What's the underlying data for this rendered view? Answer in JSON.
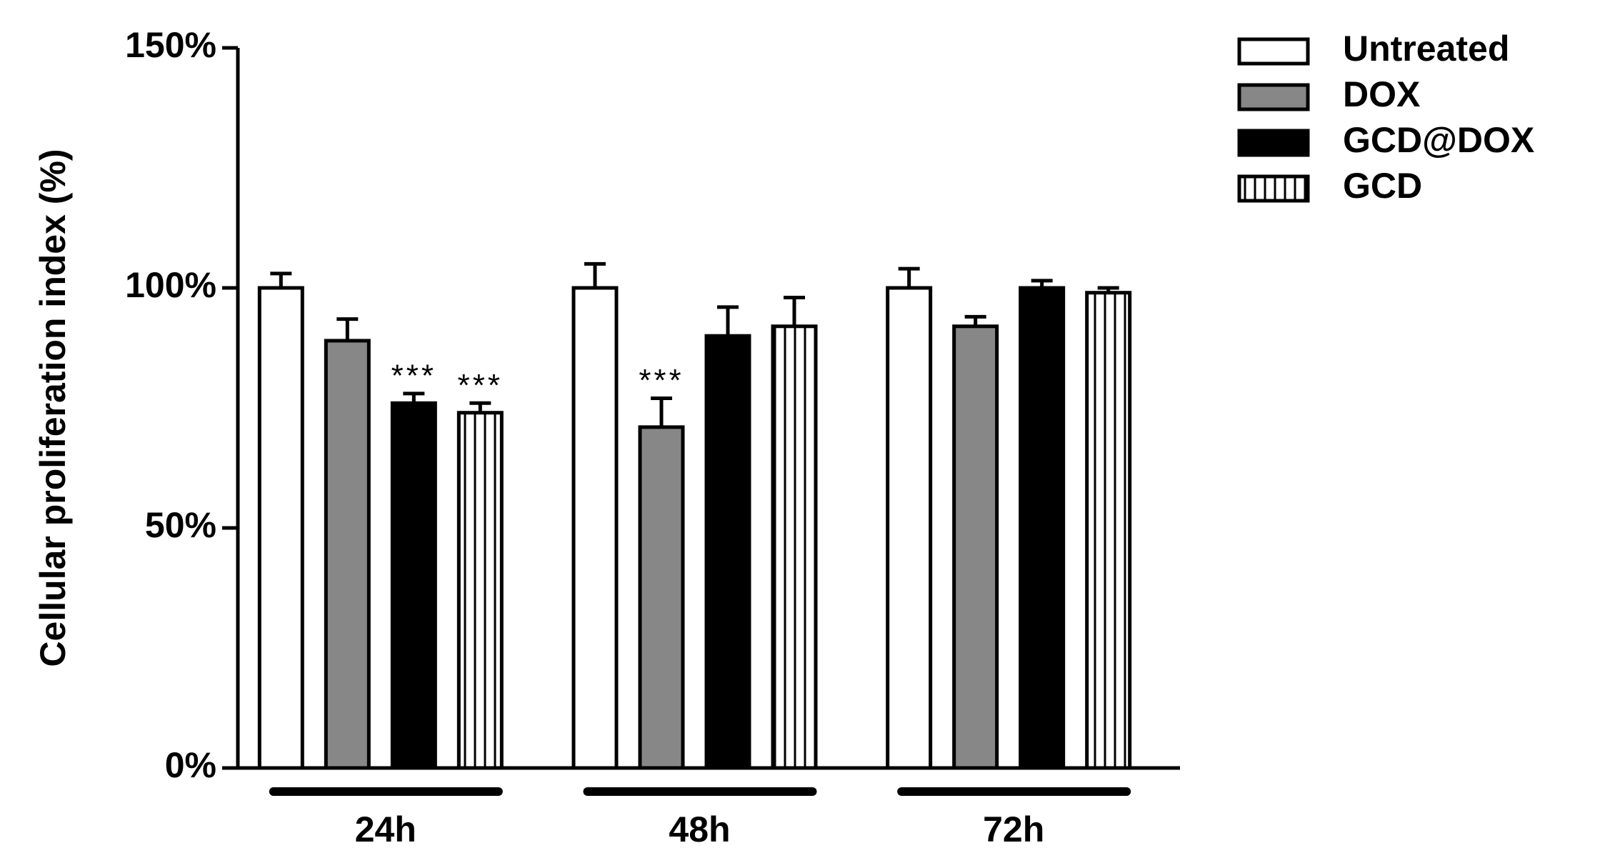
{
  "chart_data": {
    "type": "bar",
    "y_label": "Cellular proliferation index (%)",
    "categories": [
      "24h",
      "48h",
      "72h"
    ],
    "series": [
      {
        "name": "Untreated",
        "color": "#ffffff",
        "values": [
          100,
          100,
          100
        ],
        "errors": [
          3,
          5,
          4
        ]
      },
      {
        "name": "DOX",
        "color": "#878787",
        "values": [
          89,
          71,
          92
        ],
        "errors": [
          4.5,
          6,
          2
        ]
      },
      {
        "name": "GCD@DOX",
        "color": "#000000",
        "values": [
          76,
          90,
          100
        ],
        "errors": [
          2,
          6,
          1.5
        ]
      },
      {
        "name": "GCD",
        "color": "#ffffff",
        "pattern": "vertical-stripes",
        "values": [
          74,
          92,
          99
        ],
        "errors": [
          2,
          6,
          1
        ]
      }
    ],
    "ylim": [
      0,
      150
    ],
    "yticks": [
      {
        "value": 0,
        "label": "0%"
      },
      {
        "value": 50,
        "label": "50%"
      },
      {
        "value": 100,
        "label": "100%"
      },
      {
        "value": 150,
        "label": "150%"
      }
    ],
    "annotations": [
      {
        "text": "***",
        "category": "24h",
        "series": "GCD@DOX"
      },
      {
        "text": "***",
        "category": "24h",
        "series": "GCD"
      },
      {
        "text": "***",
        "category": "48h",
        "series": "DOX"
      }
    ],
    "legend": "upper-right",
    "grid": false
  }
}
